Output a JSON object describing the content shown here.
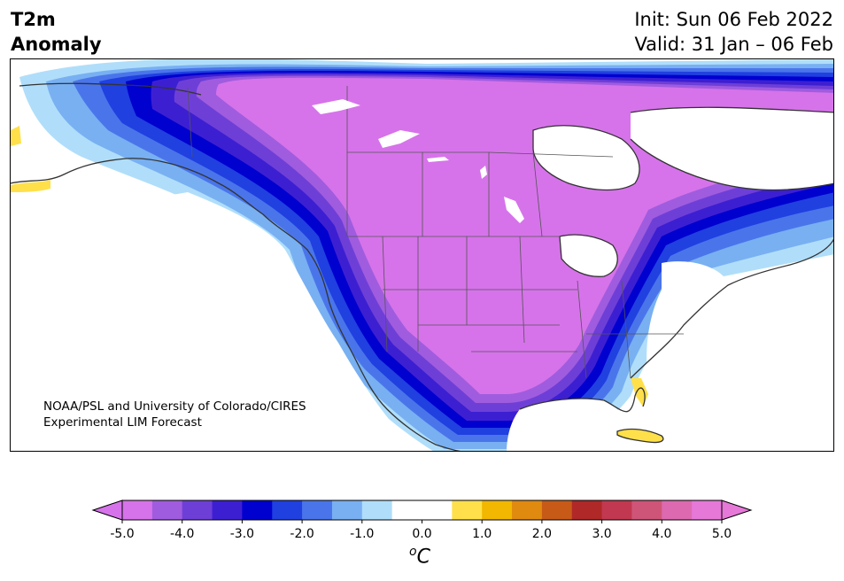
{
  "header": {
    "title_left": "T2m\nAnomaly",
    "init_text": "Init: Sun 06 Feb 2022",
    "valid_text": "Valid: 31 Jan – 06 Feb"
  },
  "map": {
    "credit_line1": "NOAA/PSL and University of Colorado/CIRES",
    "credit_line2": "Experimental LIM Forecast",
    "region": "North America"
  },
  "colorbar": {
    "unit_base": "C",
    "unit_sup": "o",
    "tick_labels": [
      "-5.0",
      "-4.0",
      "-3.0",
      "-2.0",
      "-1.0",
      "0.0",
      "1.0",
      "2.0",
      "3.0",
      "4.0",
      "5.0"
    ],
    "colors": [
      "#d673ea",
      "#a05cdf",
      "#6e3fd7",
      "#3d1fd2",
      "#0000cf",
      "#2040e0",
      "#4a75ea",
      "#78b0f2",
      "#b0defa",
      "#ffffff",
      "#ffffff",
      "#ffe04a",
      "#f2b700",
      "#e08a10",
      "#c85a18",
      "#b02828",
      "#c23850",
      "#cf5578",
      "#dd6ab0",
      "#e678d8"
    ],
    "under_color": "#d673ea",
    "over_color": "#e678d8"
  }
}
